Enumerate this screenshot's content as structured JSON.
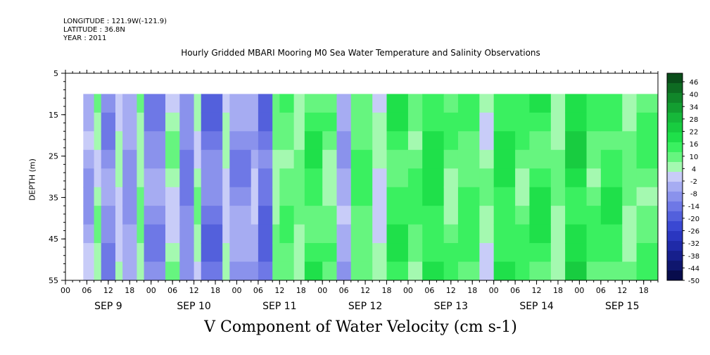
{
  "header": {
    "longitude": "LONGITUDE : 121.9W(-121.9)",
    "latitude": "LATITUDE : 36.8N",
    "year": "YEAR : 2011",
    "title": "Hourly Gridded MBARI Mooring M0 Sea Water Temperature and Salinity Observations"
  },
  "chart_data": {
    "type": "heatmap",
    "title": "Hourly Gridded MBARI Mooring M0 Sea Water Temperature and Salinity Observations",
    "variable": "V Component of Water Velocity (cm s-1)",
    "ylabel": "DEPTH (m)",
    "ylim": [
      55,
      5
    ],
    "y_ticks": [
      "5",
      "15",
      "25",
      "35",
      "45",
      "55"
    ],
    "xlim_hours": [
      0,
      166
    ],
    "data_start_hour": 5,
    "data_top_depth": 10,
    "hour_ticks": [
      "00",
      "06",
      "12",
      "18",
      "00",
      "06",
      "12",
      "18",
      "00",
      "06",
      "12",
      "18",
      "00",
      "06",
      "12",
      "18",
      "00",
      "06",
      "12",
      "18",
      "00",
      "06",
      "12",
      "18",
      "00",
      "06",
      "12",
      "18"
    ],
    "day_labels": [
      "SEP  9",
      "SEP 10",
      "SEP 11",
      "SEP 12",
      "SEP 13",
      "SEP 14",
      "SEP 15"
    ],
    "colorbar_labels": [
      "46",
      "40",
      "34",
      "28",
      "22",
      "16",
      "10",
      "4",
      "-2",
      "-8",
      "-14",
      "-20",
      "-26",
      "-32",
      "-38",
      "-44",
      "-50"
    ],
    "colorbar_colors": [
      "#0a4d1a",
      "#0e6b22",
      "#11862a",
      "#139e31",
      "#16b83a",
      "#18cc40",
      "#1fe04a",
      "#3af060",
      "#66f57f",
      "#a4f9b0",
      "#c8ccf8",
      "#a6acf2",
      "#8a92ec",
      "#6e78e6",
      "#5360dc",
      "#3a48d2",
      "#2a36c0",
      "#1f2aa8",
      "#161f8c",
      "#0f166e",
      "#080c4c"
    ],
    "pattern": [
      {
        "hours": [
          5,
          8
        ],
        "value": -6
      },
      {
        "hours": [
          8,
          10
        ],
        "value": 4
      },
      {
        "hours": [
          10,
          14
        ],
        "value": -10
      },
      {
        "hours": [
          14,
          16
        ],
        "value": 2
      },
      {
        "hours": [
          16,
          20
        ],
        "value": -8
      },
      {
        "hours": [
          20,
          22
        ],
        "value": 6
      },
      {
        "hours": [
          22,
          28
        ],
        "value": -10
      },
      {
        "hours": [
          28,
          32
        ],
        "value": 4
      },
      {
        "hours": [
          32,
          36
        ],
        "value": -12
      },
      {
        "hours": [
          36,
          38
        ],
        "value": 4
      },
      {
        "hours": [
          38,
          44
        ],
        "value": -14
      },
      {
        "hours": [
          44,
          46
        ],
        "value": 2
      },
      {
        "hours": [
          46,
          52
        ],
        "value": -10
      },
      {
        "hours": [
          52,
          54
        ],
        "value": -4
      },
      {
        "hours": [
          54,
          58
        ],
        "value": -16
      },
      {
        "hours": [
          58,
          60
        ],
        "value": 6
      },
      {
        "hours": [
          60,
          64
        ],
        "value": 10
      },
      {
        "hours": [
          64,
          67
        ],
        "value": 6
      },
      {
        "hours": [
          67,
          72
        ],
        "value": 14
      },
      {
        "hours": [
          72,
          76
        ],
        "value": 8
      },
      {
        "hours": [
          76,
          80
        ],
        "value": -6
      },
      {
        "hours": [
          80,
          86
        ],
        "value": 12
      },
      {
        "hours": [
          86,
          90
        ],
        "value": 2
      },
      {
        "hours": [
          90,
          96
        ],
        "value": 14
      },
      {
        "hours": [
          96,
          100
        ],
        "value": 10
      },
      {
        "hours": [
          100,
          106
        ],
        "value": 16
      },
      {
        "hours": [
          106,
          110
        ],
        "value": 8
      },
      {
        "hours": [
          110,
          116
        ],
        "value": 12
      },
      {
        "hours": [
          116,
          120
        ],
        "value": 4
      },
      {
        "hours": [
          120,
          126
        ],
        "value": 16
      },
      {
        "hours": [
          126,
          130
        ],
        "value": 10
      },
      {
        "hours": [
          130,
          136
        ],
        "value": 14
      },
      {
        "hours": [
          136,
          140
        ],
        "value": 6
      },
      {
        "hours": [
          140,
          146
        ],
        "value": 18
      },
      {
        "hours": [
          146,
          150
        ],
        "value": 10
      },
      {
        "hours": [
          150,
          156
        ],
        "value": 14
      },
      {
        "hours": [
          156,
          160
        ],
        "value": 6
      },
      {
        "hours": [
          160,
          166
        ],
        "value": 10
      }
    ],
    "grid": false
  }
}
